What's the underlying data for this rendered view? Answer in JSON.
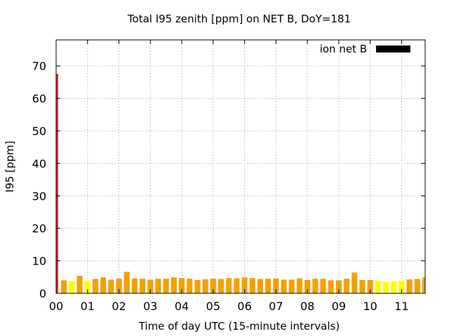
{
  "chart_data": {
    "type": "bar",
    "title": "Total I95 zenith [ppm] on NET B, DoY=181",
    "xlabel": "Time of day UTC (15-minute intervals)",
    "ylabel": "I95 [ppm]",
    "xlim": [
      0,
      11.75
    ],
    "ylim": [
      0,
      78
    ],
    "x_ticks": [
      "00",
      "01",
      "02",
      "03",
      "04",
      "05",
      "06",
      "07",
      "08",
      "09",
      "10",
      "11"
    ],
    "y_ticks": [
      0,
      10,
      20,
      30,
      40,
      50,
      60,
      70
    ],
    "grid": true,
    "legend_position": "top-right",
    "series": [
      {
        "name": "ion net B",
        "legend_color": "#000000",
        "x": [
          0.0,
          0.25,
          0.5,
          0.75,
          1.0,
          1.25,
          1.5,
          1.75,
          2.0,
          2.25,
          2.5,
          2.75,
          3.0,
          3.25,
          3.5,
          3.75,
          4.0,
          4.25,
          4.5,
          4.75,
          5.0,
          5.25,
          5.5,
          5.75,
          6.0,
          6.25,
          6.5,
          6.75,
          7.0,
          7.25,
          7.5,
          7.75,
          8.0,
          8.25,
          8.5,
          8.75,
          9.0,
          9.25,
          9.5,
          9.75,
          10.0,
          10.25,
          10.5,
          10.75,
          11.0,
          11.25,
          11.5,
          11.75
        ],
        "values": [
          67.5,
          4.0,
          3.8,
          5.4,
          3.9,
          4.4,
          4.9,
          4.2,
          4.5,
          6.6,
          4.6,
          4.5,
          4.2,
          4.5,
          4.5,
          4.9,
          4.7,
          4.5,
          4.1,
          4.3,
          4.5,
          4.4,
          4.7,
          4.6,
          4.9,
          4.7,
          4.4,
          4.5,
          4.6,
          4.2,
          4.2,
          4.6,
          4.1,
          4.5,
          4.5,
          4.0,
          4.0,
          4.5,
          6.4,
          4.1,
          4.1,
          3.8,
          3.5,
          3.8,
          3.9,
          4.3,
          4.4,
          4.9
        ],
        "colors": [
          "#e03030",
          "#f5a000",
          "#ffff00",
          "#f5a000",
          "#ffff00",
          "#f5a000",
          "#f5a000",
          "#f5a000",
          "#f5a000",
          "#f5a000",
          "#f5a000",
          "#f5a000",
          "#f5a000",
          "#f5a000",
          "#f5a000",
          "#f5a000",
          "#f5a000",
          "#f5a000",
          "#f5a000",
          "#f5a000",
          "#f5a000",
          "#f5a000",
          "#f5a000",
          "#f5a000",
          "#f5a000",
          "#f5a000",
          "#f5a000",
          "#f5a000",
          "#f5a000",
          "#f5a000",
          "#f5a000",
          "#f5a000",
          "#f5a000",
          "#f5a000",
          "#f5a000",
          "#f5a000",
          "#f5a000",
          "#f5a000",
          "#f5a000",
          "#f5a000",
          "#f5a000",
          "#ffff00",
          "#ffff00",
          "#ffff00",
          "#ffff00",
          "#f5a000",
          "#f5a000",
          "#f5a000"
        ]
      }
    ]
  }
}
